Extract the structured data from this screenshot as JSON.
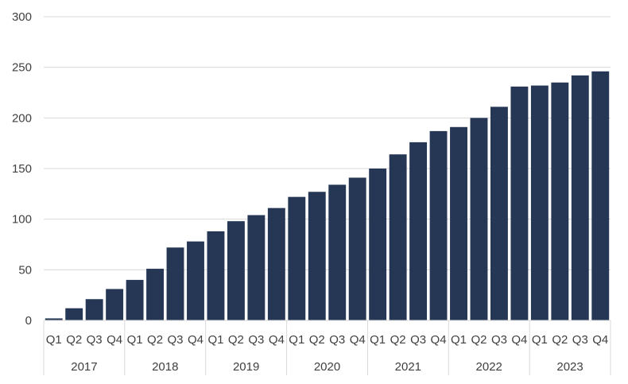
{
  "chart_data": {
    "type": "bar",
    "title": "",
    "xlabel": "",
    "ylabel": "",
    "ylim": [
      0,
      300
    ],
    "yticks": [
      0,
      50,
      100,
      150,
      200,
      250,
      300
    ],
    "grid": true,
    "bar_color": "#253754",
    "years": [
      "2017",
      "2018",
      "2019",
      "2020",
      "2021",
      "2022",
      "2023"
    ],
    "quarters": [
      "Q1",
      "Q2",
      "Q3",
      "Q4"
    ],
    "values": [
      2,
      12,
      21,
      31,
      40,
      51,
      72,
      78,
      88,
      98,
      104,
      111,
      122,
      127,
      134,
      141,
      150,
      164,
      176,
      187,
      191,
      200,
      211,
      231,
      232,
      235,
      242,
      246
    ]
  }
}
